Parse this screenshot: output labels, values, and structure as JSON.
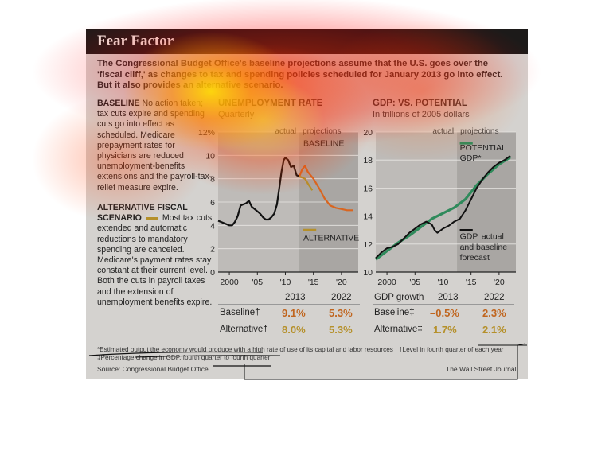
{
  "header": {
    "title": "Fear Factor",
    "intro": "The Congressional Budget Office's baseline projections assume that the U.S. goes over the 'fiscal cliff,' as changes to tax and spending policies scheduled for January 2013 go into effect. But it also provides an alternative scenario."
  },
  "sidebar": {
    "baseline_heading": "BASELINE",
    "baseline_text": "No action taken; tax cuts expire and spending cuts go into effect as scheduled. Medicare prepayment rates for physicians are reduced; unemployment-benefits extensions and the payroll-tax-relief measure expire.",
    "alt_heading": "ALTERNATIVE FISCAL SCENARIO",
    "alt_text": "Most tax cuts extended and automatic reductions to mandatory spending are canceled. Medicare's payment rates stay constant at their current level. Both the cuts in payroll taxes and the extension of unemployment benefits expire."
  },
  "colors": {
    "baseline": "#d9651f",
    "alternative": "#b5902a",
    "actual": "#111111",
    "potential": "#2f8a5b",
    "projection_shade": "#a9a6a3",
    "panel": "#d4d2cf",
    "title_bar": "#1c1a19"
  },
  "labels": {
    "unemp_title": "UNEMPLOYMENT RATE",
    "unemp_sub": "Quarterly",
    "gdp_title": "GDP: VS. POTENTIAL",
    "gdp_sub": "In trillions of 2005 dollars",
    "actual": "actual",
    "projections": "projections",
    "baseline_tag": "BASELINE",
    "alternative_tag": "ALTERNATIVE",
    "potential_gdp_1": "POTENTIAL",
    "potential_gdp_2": "GDP*",
    "gdp_actual_1": "GDP, actual",
    "gdp_actual_2": "and baseline",
    "gdp_actual_3": "forecast"
  },
  "tables": {
    "unemp": {
      "col1": "2013",
      "col2": "2022",
      "row1": "Baseline†",
      "row1_v1": "9.1%",
      "row1_v2": "5.3%",
      "row2": "Alternative†",
      "row2_v1": "8.0%",
      "row2_v2": "5.3%"
    },
    "gdp": {
      "head": "GDP growth",
      "col1": "2013",
      "col2": "2022",
      "row1": "Baseline‡",
      "row1_v1": "–0.5%",
      "row1_v2": "2.3%",
      "row2": "Alternative‡",
      "row2_v1": "1.7%",
      "row2_v2": "2.1%"
    }
  },
  "footer": {
    "note1": "*Estimated output the economy would produce with a high rate of use of its capital and labor resources",
    "note2": "†Level in fourth quarter of each year",
    "note3": "‡Percentage change in GDP, fourth quarter to fourth quarter",
    "source": "Source: Congressional Budget Office",
    "credit": "The Wall Street Journal"
  },
  "chart_data": [
    {
      "type": "line",
      "title": "UNEMPLOYMENT RATE",
      "subtitle": "Quarterly",
      "x_ticks": [
        "2000",
        "'05",
        "'10",
        "'15",
        "'20"
      ],
      "y_ticks": [
        "0",
        "2",
        "4",
        "6",
        "8",
        "10",
        "12%"
      ],
      "xlim": [
        1998,
        2023
      ],
      "ylim": [
        0,
        12
      ],
      "projection_start": 2012.5,
      "series": [
        {
          "name": "actual",
          "points": [
            [
              1998,
              4.4
            ],
            [
              1999,
              4.2
            ],
            [
              2000,
              4.0
            ],
            [
              2000.5,
              4.0
            ],
            [
              2001,
              4.3
            ],
            [
              2001.5,
              4.8
            ],
            [
              2002,
              5.7
            ],
            [
              2002.5,
              5.8
            ],
            [
              2003,
              5.9
            ],
            [
              2003.5,
              6.1
            ],
            [
              2004,
              5.6
            ],
            [
              2004.5,
              5.4
            ],
            [
              2005,
              5.2
            ],
            [
              2005.5,
              5.0
            ],
            [
              2006,
              4.7
            ],
            [
              2006.5,
              4.5
            ],
            [
              2007,
              4.5
            ],
            [
              2007.5,
              4.7
            ],
            [
              2008,
              5.0
            ],
            [
              2008.5,
              5.8
            ],
            [
              2009,
              7.5
            ],
            [
              2009.3,
              8.6
            ],
            [
              2009.7,
              9.6
            ],
            [
              2010,
              9.8
            ],
            [
              2010.5,
              9.6
            ],
            [
              2011,
              9.0
            ],
            [
              2011.5,
              9.1
            ],
            [
              2012,
              8.3
            ],
            [
              2012.5,
              8.2
            ]
          ]
        },
        {
          "name": "BASELINE",
          "points": [
            [
              2012.5,
              8.2
            ],
            [
              2013,
              8.8
            ],
            [
              2013.5,
              9.1
            ],
            [
              2014,
              8.6
            ],
            [
              2015,
              8.0
            ],
            [
              2016,
              7.2
            ],
            [
              2017,
              6.3
            ],
            [
              2018,
              5.7
            ],
            [
              2019,
              5.5
            ],
            [
              2020,
              5.4
            ],
            [
              2021,
              5.3
            ],
            [
              2022,
              5.3
            ]
          ]
        },
        {
          "name": "ALTERNATIVE",
          "points": [
            [
              2012.5,
              8.2
            ],
            [
              2013,
              8.1
            ],
            [
              2013.5,
              8.0
            ],
            [
              2014,
              7.6
            ],
            [
              2014.8,
              7.0
            ]
          ]
        }
      ]
    },
    {
      "type": "line",
      "title": "GDP: VS. POTENTIAL",
      "subtitle": "In trillions of 2005 dollars",
      "x_ticks": [
        "2000",
        "'05",
        "'10",
        "'15",
        "'20"
      ],
      "y_ticks": [
        "10",
        "12",
        "14",
        "16",
        "18",
        "20"
      ],
      "xlim": [
        1998,
        2023
      ],
      "ylim": [
        10,
        20
      ],
      "projection_start": 2012.5,
      "series": [
        {
          "name": "POTENTIAL GDP*",
          "points": [
            [
              1998,
              10.9
            ],
            [
              2000,
              11.5
            ],
            [
              2002,
              12.1
            ],
            [
              2004,
              12.6
            ],
            [
              2006,
              13.2
            ],
            [
              2008,
              13.8
            ],
            [
              2010,
              14.2
            ],
            [
              2012,
              14.6
            ],
            [
              2014,
              15.2
            ],
            [
              2016,
              16.2
            ],
            [
              2018,
              17.0
            ],
            [
              2020,
              17.7
            ],
            [
              2022,
              18.2
            ]
          ]
        },
        {
          "name": "GDP, actual and baseline forecast",
          "points": [
            [
              1998,
              11.0
            ],
            [
              1999,
              11.4
            ],
            [
              2000,
              11.7
            ],
            [
              2001,
              11.8
            ],
            [
              2002,
              12.0
            ],
            [
              2003,
              12.4
            ],
            [
              2004,
              12.8
            ],
            [
              2005,
              13.1
            ],
            [
              2006,
              13.4
            ],
            [
              2007,
              13.6
            ],
            [
              2008,
              13.4
            ],
            [
              2008.5,
              13.0
            ],
            [
              2009,
              12.8
            ],
            [
              2010,
              13.1
            ],
            [
              2011,
              13.3
            ],
            [
              2012,
              13.6
            ],
            [
              2013,
              13.8
            ],
            [
              2014,
              14.4
            ],
            [
              2015,
              15.2
            ],
            [
              2016,
              16.0
            ],
            [
              2017,
              16.6
            ],
            [
              2018,
              17.1
            ],
            [
              2019,
              17.5
            ],
            [
              2020,
              17.8
            ],
            [
              2021,
              18.0
            ],
            [
              2022,
              18.3
            ]
          ]
        }
      ]
    }
  ]
}
